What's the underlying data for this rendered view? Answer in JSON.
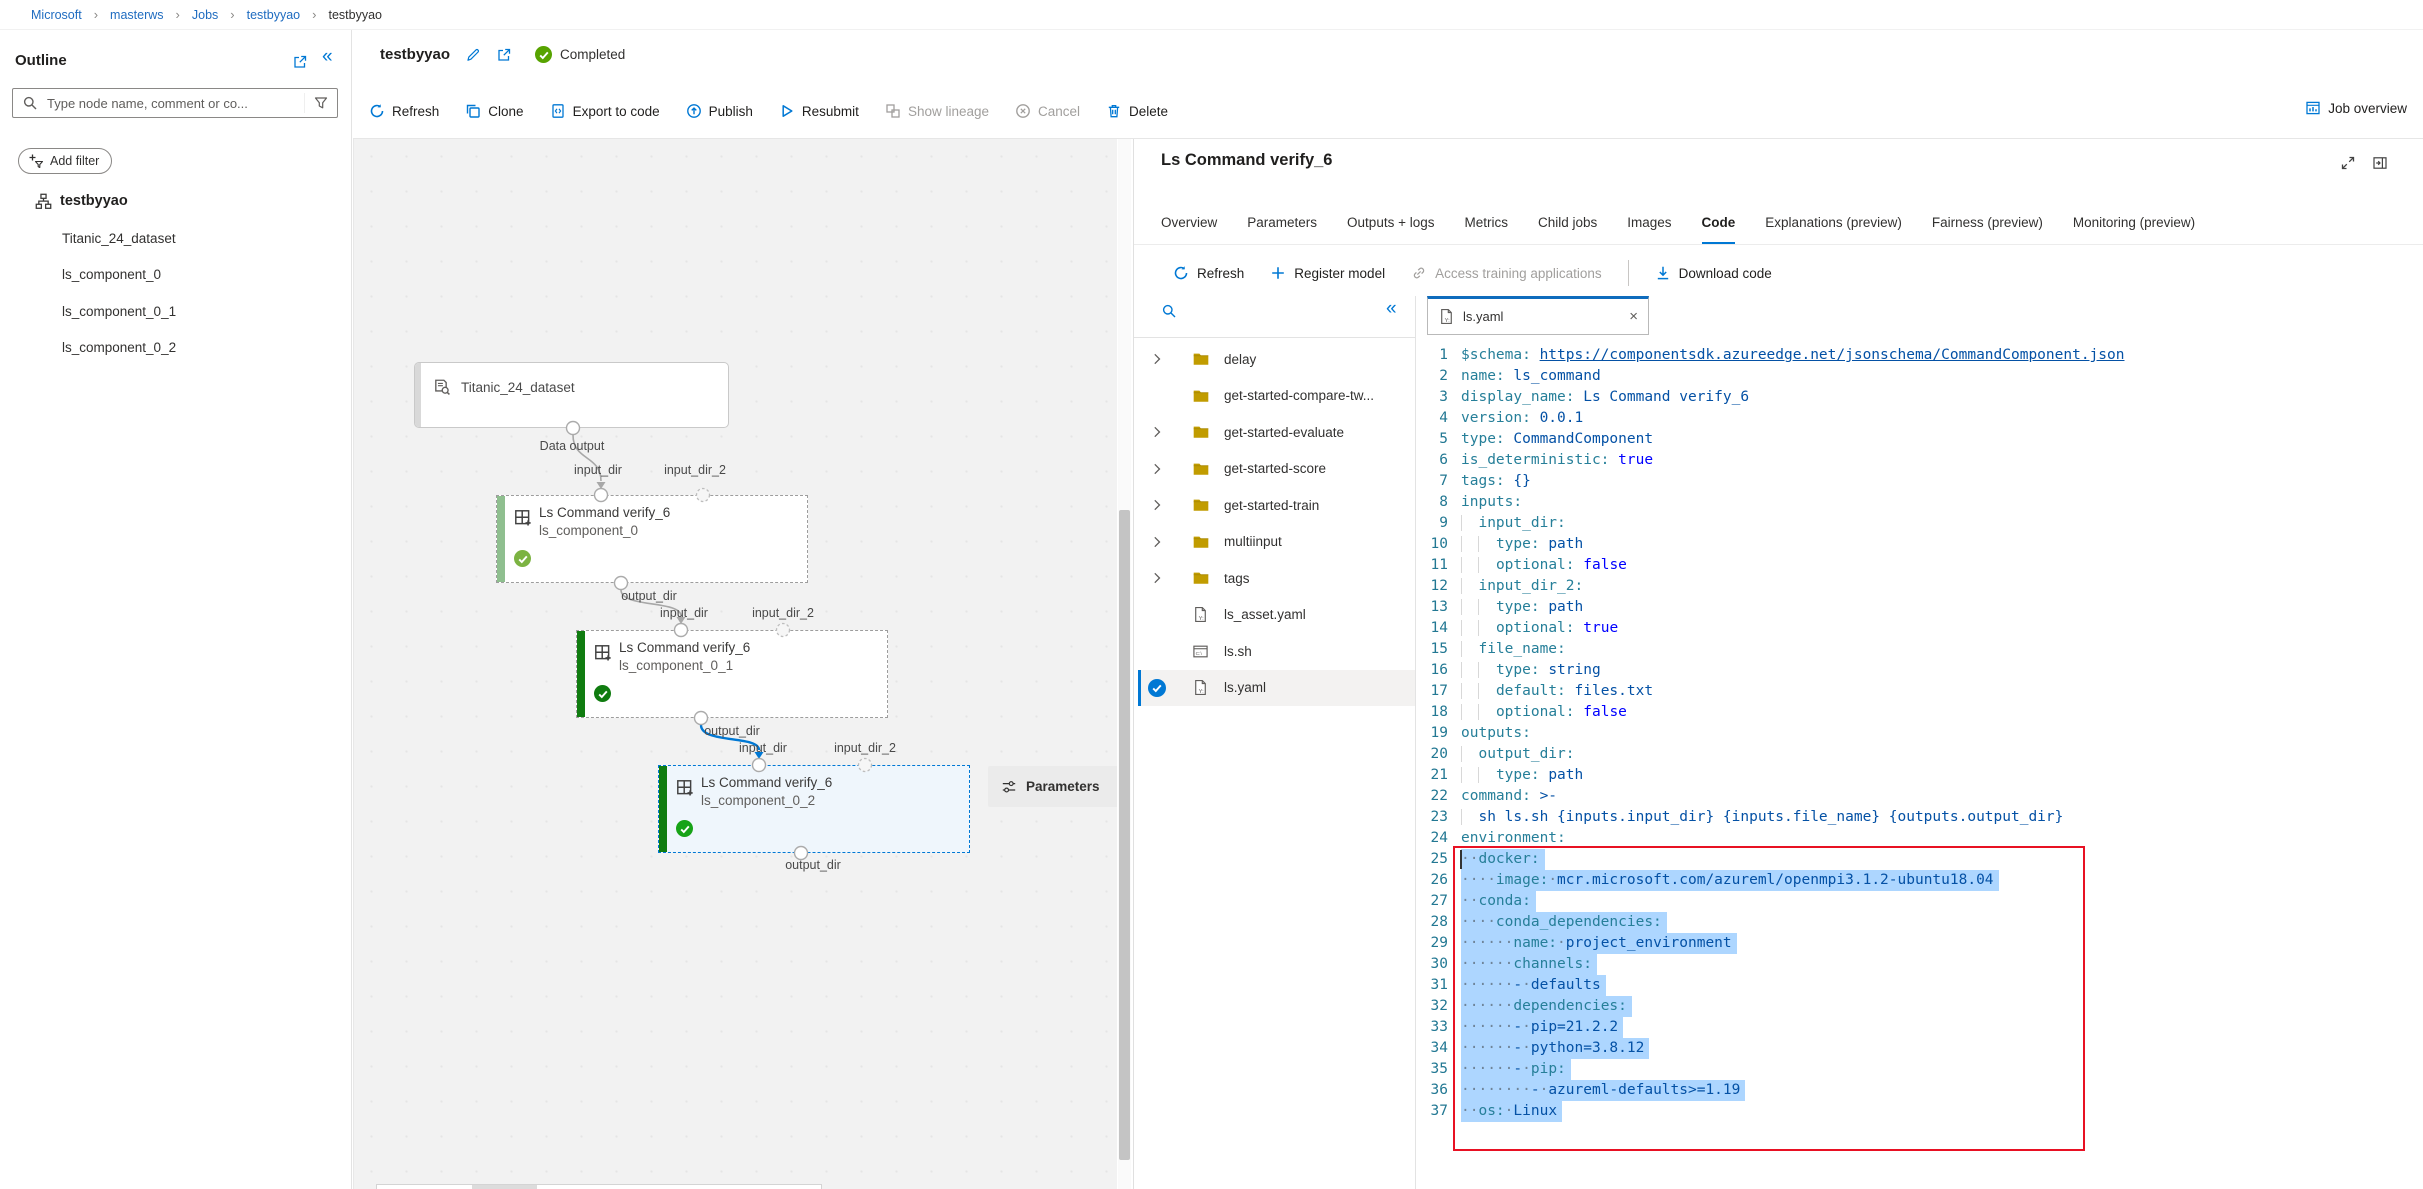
{
  "breadcrumb": {
    "separator": "›",
    "items": [
      {
        "label": "Microsoft",
        "link": true
      },
      {
        "label": "masterws",
        "link": true
      },
      {
        "label": "Jobs",
        "link": true
      },
      {
        "label": "testbyyao",
        "link": true
      },
      {
        "label": "testbyyao",
        "link": false
      }
    ]
  },
  "sidebar": {
    "title": "Outline",
    "search_placeholder": "Type node name, comment or co...",
    "add_filter": "Add filter",
    "tree": [
      {
        "label": "testbyyao",
        "root": true,
        "icon": "pipeline-icon"
      },
      {
        "label": "Titanic_24_dataset"
      },
      {
        "label": "ls_component_0"
      },
      {
        "label": "ls_component_0_1"
      },
      {
        "label": "ls_component_0_2"
      }
    ]
  },
  "toolbar": {
    "job_name": "testbyyao",
    "status": "Completed",
    "buttons": [
      {
        "label": "Refresh",
        "icon": "refresh-icon",
        "disabled": false
      },
      {
        "label": "Clone",
        "icon": "clone-icon",
        "disabled": false
      },
      {
        "label": "Export to code",
        "icon": "export-code-icon",
        "disabled": false
      },
      {
        "label": "Publish",
        "icon": "publish-icon",
        "disabled": false
      },
      {
        "label": "Resubmit",
        "icon": "resubmit-icon",
        "disabled": false
      },
      {
        "label": "Show lineage",
        "icon": "lineage-icon",
        "disabled": true
      },
      {
        "label": "Cancel",
        "icon": "cancel-icon",
        "disabled": true
      },
      {
        "label": "Delete",
        "icon": "delete-icon",
        "disabled": false
      }
    ],
    "job_overview": "Job overview"
  },
  "graph": {
    "nodes": [
      {
        "title": "Titanic_24_dataset",
        "kind": "dataset"
      },
      {
        "title": "Ls Command verify_6",
        "subtitle": "ls_component_0",
        "kind": "component",
        "status": "completed",
        "selected": false
      },
      {
        "title": "Ls Command verify_6",
        "subtitle": "ls_component_0_1",
        "kind": "component",
        "status": "completed",
        "selected": false
      },
      {
        "title": "Ls Command verify_6",
        "subtitle": "ls_component_0_2",
        "kind": "component",
        "status": "completed",
        "selected": true
      }
    ],
    "port_labels": {
      "data_output": "Data output",
      "input_dir": "input_dir",
      "input_dir_2": "input_dir_2",
      "output_dir": "output_dir"
    },
    "parameters_button": "Parameters"
  },
  "panel": {
    "title": "Ls Command verify_6",
    "tabs": [
      "Overview",
      "Parameters",
      "Outputs + logs",
      "Metrics",
      "Child jobs",
      "Images",
      "Code",
      "Explanations (preview)",
      "Fairness (preview)",
      "Monitoring (preview)"
    ],
    "active_tab": "Code",
    "commands": [
      {
        "label": "Refresh",
        "icon": "refresh-icon",
        "disabled": false
      },
      {
        "label": "Register model",
        "icon": "plus-icon",
        "disabled": false
      },
      {
        "label": "Access training applications",
        "icon": "link-icon",
        "disabled": true
      },
      {
        "label": "Download code",
        "icon": "download-icon",
        "disabled": false,
        "divider_before": true
      }
    ]
  },
  "files": {
    "items": [
      {
        "label": "delay",
        "type": "folder",
        "chevron": true
      },
      {
        "label": "get-started-compare-tw...",
        "type": "folder",
        "chevron": false
      },
      {
        "label": "get-started-evaluate",
        "type": "folder",
        "chevron": true
      },
      {
        "label": "get-started-score",
        "type": "folder",
        "chevron": true
      },
      {
        "label": "get-started-train",
        "type": "folder",
        "chevron": true
      },
      {
        "label": "multiinput",
        "type": "folder",
        "chevron": true
      },
      {
        "label": "tags",
        "type": "folder",
        "chevron": true
      },
      {
        "label": "ls_asset.yaml",
        "type": "yaml",
        "chevron": false
      },
      {
        "label": "ls.sh",
        "type": "shell",
        "chevron": false
      },
      {
        "label": "ls.yaml",
        "type": "yaml",
        "chevron": false,
        "selected": true
      }
    ]
  },
  "editor": {
    "tab_label": "ls.yaml",
    "lines": [
      {
        "n": 1,
        "t": [
          [
            "k",
            "$schema: "
          ],
          [
            "a",
            "https://componentsdk.azureedge.net/jsonschema/CommandComponent.json"
          ]
        ]
      },
      {
        "n": 2,
        "t": [
          [
            "k",
            "name: "
          ],
          [
            "v",
            "ls_command"
          ]
        ]
      },
      {
        "n": 3,
        "t": [
          [
            "k",
            "display_name: "
          ],
          [
            "v",
            "Ls Command verify_6"
          ]
        ]
      },
      {
        "n": 4,
        "t": [
          [
            "k",
            "version: "
          ],
          [
            "v",
            "0.0.1"
          ]
        ]
      },
      {
        "n": 5,
        "t": [
          [
            "k",
            "type: "
          ],
          [
            "v",
            "CommandComponent"
          ]
        ]
      },
      {
        "n": 6,
        "t": [
          [
            "k",
            "is_deterministic: "
          ],
          [
            "b",
            "true"
          ]
        ]
      },
      {
        "n": 7,
        "t": [
          [
            "k",
            "tags: "
          ],
          [
            "v",
            "{}"
          ]
        ]
      },
      {
        "n": 8,
        "t": [
          [
            "k",
            "inputs:"
          ]
        ]
      },
      {
        "n": 9,
        "t": [
          [
            "w",
            "  "
          ],
          [
            "k",
            "input_dir:"
          ]
        ]
      },
      {
        "n": 10,
        "t": [
          [
            "w",
            "    "
          ],
          [
            "k",
            "type: "
          ],
          [
            "v",
            "path"
          ]
        ]
      },
      {
        "n": 11,
        "t": [
          [
            "w",
            "    "
          ],
          [
            "k",
            "optional: "
          ],
          [
            "b",
            "false"
          ]
        ]
      },
      {
        "n": 12,
        "t": [
          [
            "w",
            "  "
          ],
          [
            "k",
            "input_dir_2:"
          ]
        ]
      },
      {
        "n": 13,
        "t": [
          [
            "w",
            "    "
          ],
          [
            "k",
            "type: "
          ],
          [
            "v",
            "path"
          ]
        ]
      },
      {
        "n": 14,
        "t": [
          [
            "w",
            "    "
          ],
          [
            "k",
            "optional: "
          ],
          [
            "b",
            "true"
          ]
        ]
      },
      {
        "n": 15,
        "t": [
          [
            "w",
            "  "
          ],
          [
            "k",
            "file_name:"
          ]
        ]
      },
      {
        "n": 16,
        "t": [
          [
            "w",
            "    "
          ],
          [
            "k",
            "type: "
          ],
          [
            "v",
            "string"
          ]
        ]
      },
      {
        "n": 17,
        "t": [
          [
            "w",
            "    "
          ],
          [
            "k",
            "default: "
          ],
          [
            "v",
            "files.txt"
          ]
        ]
      },
      {
        "n": 18,
        "t": [
          [
            "w",
            "    "
          ],
          [
            "k",
            "optional: "
          ],
          [
            "b",
            "false"
          ]
        ]
      },
      {
        "n": 19,
        "t": [
          [
            "k",
            "outputs:"
          ]
        ]
      },
      {
        "n": 20,
        "t": [
          [
            "w",
            "  "
          ],
          [
            "k",
            "output_dir:"
          ]
        ]
      },
      {
        "n": 21,
        "t": [
          [
            "w",
            "    "
          ],
          [
            "k",
            "type: "
          ],
          [
            "v",
            "path"
          ]
        ]
      },
      {
        "n": 22,
        "t": [
          [
            "k",
            "command: "
          ],
          [
            "v",
            ">-"
          ]
        ]
      },
      {
        "n": 23,
        "t": [
          [
            "w",
            "  "
          ],
          [
            "v",
            "sh ls.sh {inputs.input_dir} {inputs.file_name} {outputs.output_dir}"
          ]
        ]
      },
      {
        "n": 24,
        "t": [
          [
            "k",
            "environment:"
          ]
        ]
      },
      {
        "n": 25,
        "sel": true,
        "t": [
          [
            "w",
            "  "
          ],
          [
            "k",
            "docker:"
          ]
        ]
      },
      {
        "n": 26,
        "sel": true,
        "t": [
          [
            "w",
            "    "
          ],
          [
            "k",
            "image:"
          ],
          [
            "w",
            " "
          ],
          [
            "v",
            "mcr.microsoft.com/azureml/openmpi3.1.2-ubuntu18.04"
          ]
        ]
      },
      {
        "n": 27,
        "sel": true,
        "t": [
          [
            "w",
            "  "
          ],
          [
            "k",
            "conda:"
          ]
        ]
      },
      {
        "n": 28,
        "sel": true,
        "t": [
          [
            "w",
            "    "
          ],
          [
            "k",
            "conda_dependencies:"
          ]
        ]
      },
      {
        "n": 29,
        "sel": true,
        "t": [
          [
            "w",
            "      "
          ],
          [
            "k",
            "name:"
          ],
          [
            "w",
            " "
          ],
          [
            "v",
            "project_environment"
          ]
        ]
      },
      {
        "n": 30,
        "sel": true,
        "t": [
          [
            "w",
            "      "
          ],
          [
            "k",
            "channels:"
          ]
        ]
      },
      {
        "n": 31,
        "sel": true,
        "t": [
          [
            "w",
            "      "
          ],
          [
            "v",
            "-"
          ],
          [
            "w",
            " "
          ],
          [
            "v",
            "defaults"
          ]
        ]
      },
      {
        "n": 32,
        "sel": true,
        "t": [
          [
            "w",
            "      "
          ],
          [
            "k",
            "dependencies:"
          ]
        ]
      },
      {
        "n": 33,
        "sel": true,
        "t": [
          [
            "w",
            "      "
          ],
          [
            "v",
            "-"
          ],
          [
            "w",
            " "
          ],
          [
            "v",
            "pip=21.2.2"
          ]
        ]
      },
      {
        "n": 34,
        "sel": true,
        "t": [
          [
            "w",
            "      "
          ],
          [
            "v",
            "-"
          ],
          [
            "w",
            " "
          ],
          [
            "v",
            "python=3.8.12"
          ]
        ]
      },
      {
        "n": 35,
        "sel": true,
        "t": [
          [
            "w",
            "      "
          ],
          [
            "v",
            "-"
          ],
          [
            "w",
            " "
          ],
          [
            "k",
            "pip:"
          ]
        ]
      },
      {
        "n": 36,
        "sel": true,
        "t": [
          [
            "w",
            "        "
          ],
          [
            "v",
            "-"
          ],
          [
            "w",
            " "
          ],
          [
            "v",
            "azureml-defaults>=1.19"
          ]
        ]
      },
      {
        "n": 37,
        "sel": true,
        "t": [
          [
            "w",
            "  "
          ],
          [
            "k",
            "os:"
          ],
          [
            "w",
            " "
          ],
          [
            "v",
            "Linux"
          ]
        ]
      }
    ]
  },
  "colors": {
    "accent": "#0078d4",
    "completed_green": "#57a300",
    "node_bar_dark": "#107c10",
    "node_bar_light": "#8fbf8f",
    "selection_blue": "#add6ff",
    "highlight_box_red": "#e81123",
    "folder_yellow": "#c19c00"
  }
}
